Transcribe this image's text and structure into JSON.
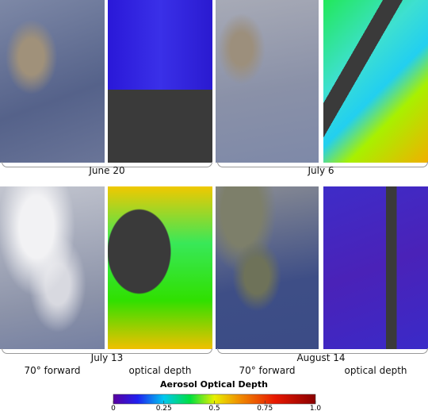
{
  "panels": [
    {
      "date": "June 20"
    },
    {
      "date": "July 6"
    },
    {
      "date": "July 13",
      "left_label": "70° forward",
      "right_label": "optical depth"
    },
    {
      "date": "August 14",
      "left_label": "70° forward",
      "right_label": "optical depth"
    }
  ],
  "colorbar": {
    "title": "Aerosol Optical Depth",
    "lim": [
      0,
      1
    ],
    "ticks": [
      0,
      0.25,
      0.5,
      0.75,
      {
        "value": 1,
        "label": "1.0"
      }
    ]
  }
}
